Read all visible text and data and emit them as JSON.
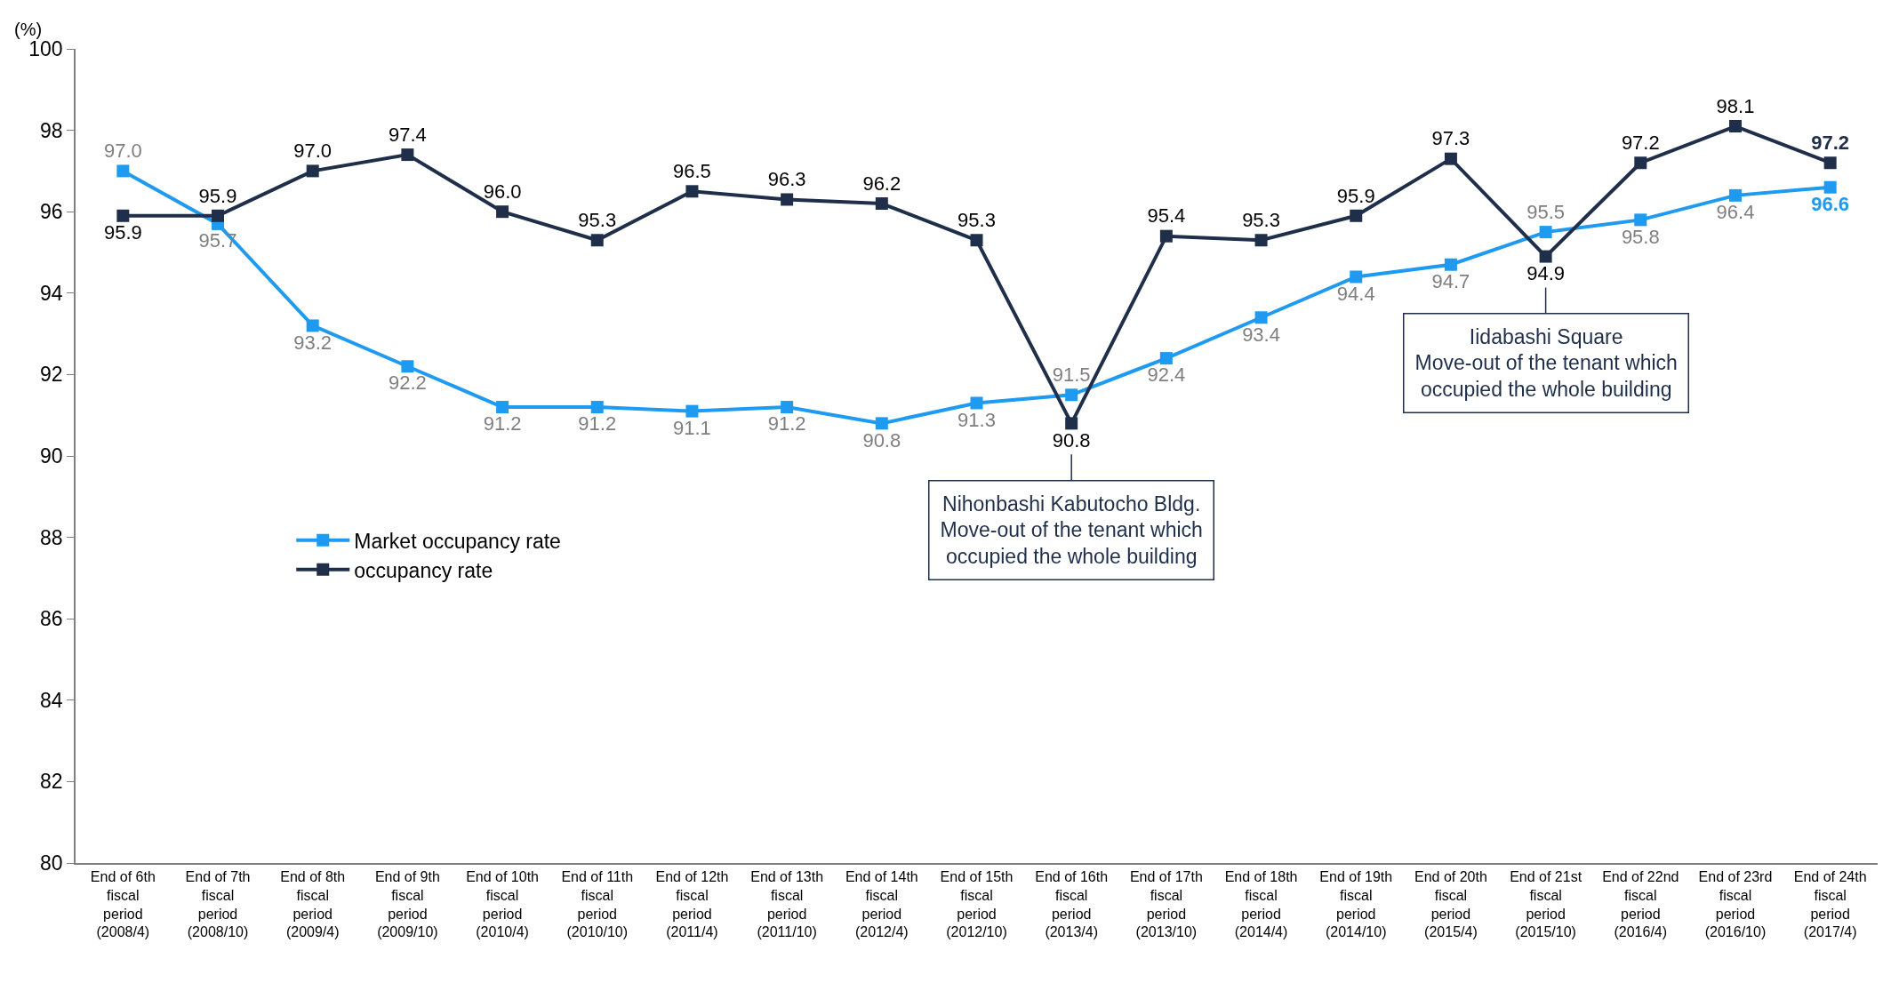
{
  "chart_data": {
    "type": "line",
    "ylabel": "(%)",
    "categories": [
      "End of 6th fiscal period (2008/4)",
      "End of 7th fiscal period (2008/10)",
      "End of 8th fiscal period (2009/4)",
      "End of 9th fiscal period (2009/10)",
      "End of 10th fiscal period (2010/4)",
      "End of 11th fiscal period (2010/10)",
      "End of 12th fiscal period (2011/4)",
      "End of 13th fiscal period (2011/10)",
      "End of 14th fiscal period (2012/4)",
      "End of 15th fiscal period (2012/10)",
      "End of 16th fiscal period (2013/4)",
      "End of 17th fiscal period (2013/10)",
      "End of 18th fiscal period (2014/4)",
      "End of 19th fiscal period (2014/10)",
      "End of 20th fiscal period (2015/4)",
      "End of 21st fiscal period (2015/10)",
      "End of 22nd fiscal period (2016/4)",
      "End of 23rd fiscal period (2016/10)",
      "End of 24th fiscal period (2017/4)"
    ],
    "series": [
      {
        "name": "Market occupancy rate",
        "color": "#1e9bf0",
        "values": [
          97.0,
          95.7,
          93.2,
          92.2,
          91.2,
          91.2,
          91.1,
          91.2,
          90.8,
          91.3,
          91.5,
          92.4,
          93.4,
          94.4,
          94.7,
          95.5,
          95.8,
          96.4,
          96.6
        ],
        "value_labels": [
          "97.0",
          "95.7",
          "93.2",
          "92.2",
          "91.2",
          "91.2",
          "91.1",
          "91.2",
          "90.8",
          "91.3",
          "91.5",
          "92.4",
          "93.4",
          "94.4",
          "94.7",
          "95.5",
          "95.8",
          "96.4",
          "96.6"
        ]
      },
      {
        "name": "occupancy rate",
        "color": "#1f2f4a",
        "values": [
          95.9,
          95.9,
          97.0,
          97.4,
          96.0,
          95.3,
          96.5,
          96.3,
          96.2,
          95.3,
          90.8,
          95.4,
          95.3,
          95.9,
          97.3,
          94.9,
          97.2,
          98.1,
          97.2
        ],
        "value_labels": [
          "95.9",
          "95.9",
          "97.0",
          "97.4",
          "96.0",
          "95.3",
          "96.5",
          "96.3",
          "96.2",
          "95.3",
          "90.8",
          "95.4",
          "95.3",
          "95.9",
          "97.3",
          "94.9",
          "97.2",
          "98.1",
          "97.2"
        ]
      }
    ],
    "ylim": [
      80,
      100
    ],
    "yticks": [
      80,
      82,
      84,
      86,
      88,
      90,
      92,
      94,
      96,
      98,
      100
    ],
    "grid": false,
    "legend": "left",
    "marker": "square",
    "line_style": "solid",
    "annotations": [
      {
        "text": "Nihonbashi Kabutocho Bldg.\nMove-out of the tenant which\noccupied the whole building",
        "x": "End of 16th fiscal period (2013/4)",
        "y": 90.8
      },
      {
        "text": "Iidabashi Square\nMove-out of the tenant which\noccupied the whole building",
        "x": "End of 21st fiscal period (2015/10)",
        "y": 94.9
      }
    ]
  }
}
